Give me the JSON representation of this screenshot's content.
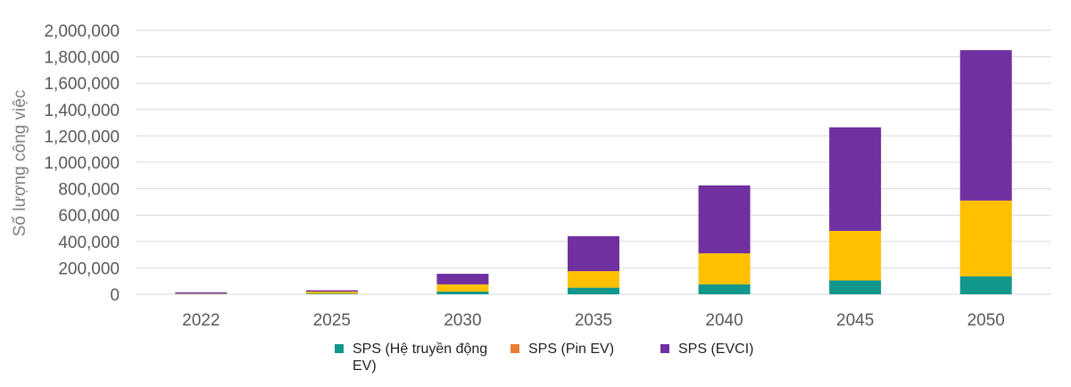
{
  "chart_data": {
    "type": "bar",
    "stacked": true,
    "ylabel": "Số lượng công việc",
    "xlabel": "",
    "ylim": [
      0,
      2000000
    ],
    "ytick_step": 200000,
    "yticks": [
      "0",
      "200,000",
      "400,000",
      "600,000",
      "800,000",
      "1,000,000",
      "1,200,000",
      "1,400,000",
      "1,600,000",
      "1,800,000",
      "2,000,000"
    ],
    "categories": [
      "2022",
      "2025",
      "2030",
      "2035",
      "2040",
      "2045",
      "2050"
    ],
    "series": [
      {
        "name": "SPS (Hệ truyền động EV)",
        "color": "#12978c",
        "values": [
          2000,
          5000,
          20000,
          50000,
          75000,
          105000,
          135000
        ]
      },
      {
        "name": "SPS (Pin EV)",
        "color": "#ffc000",
        "values": [
          3000,
          15000,
          55000,
          125000,
          235000,
          375000,
          575000
        ]
      },
      {
        "name": "SPS (EVCI)",
        "color": "#7030a0",
        "values": [
          10000,
          10000,
          80000,
          265000,
          515000,
          785000,
          1140000
        ]
      }
    ],
    "legend": {
      "position": "bottom",
      "items": [
        {
          "label_line1": "SPS (Hệ truyền động",
          "label_line2": "EV)",
          "color": "#12978c"
        },
        {
          "label_line1": "SPS (Pin EV)",
          "label_line2": "",
          "color": "#ed7d31"
        },
        {
          "label_line1": "SPS (EVCI)",
          "label_line2": "",
          "color": "#7030a0"
        }
      ]
    },
    "grid": true
  }
}
